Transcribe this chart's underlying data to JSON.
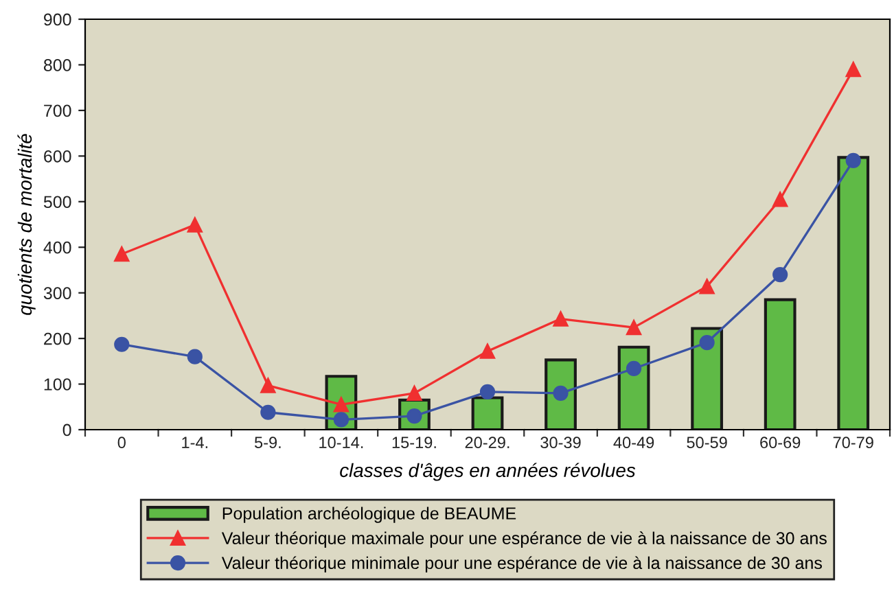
{
  "chart_data": {
    "type": "bar",
    "xlabel": "classes d'âges en années révolues",
    "ylabel": "quotients de mortalité",
    "categories": [
      "0",
      "1-4.",
      "5-9.",
      "10-14.",
      "15-19.",
      "20-29.",
      "30-39",
      "40-49",
      "50-59",
      "60-69",
      "70-79"
    ],
    "series": [
      {
        "name": "Population archéologique de BEAUME",
        "color": "#5fba46",
        "values": [
          null,
          null,
          null,
          117,
          65,
          70,
          153,
          181,
          222,
          285,
          597
        ]
      },
      {
        "name": "Valeur théorique maximale pour une espérance de vie à la naissance de 30 ans",
        "type": "line",
        "marker": "triangle",
        "color": "#f03030",
        "values": [
          385,
          449,
          97,
          55,
          80,
          172,
          243,
          224,
          314,
          505,
          790
        ]
      },
      {
        "name": "Valeur théorique minimale pour une espérance de vie à la naissance de 30 ans",
        "type": "line",
        "marker": "circle",
        "color": "#3a53a4",
        "values": [
          187,
          160,
          38,
          22,
          30,
          83,
          80,
          134,
          191,
          340,
          590
        ]
      }
    ],
    "ylim": [
      0,
      900
    ],
    "yticks": [
      0,
      100,
      200,
      300,
      400,
      500,
      600,
      700,
      800,
      900
    ],
    "grid": false,
    "legend": "bottom"
  }
}
